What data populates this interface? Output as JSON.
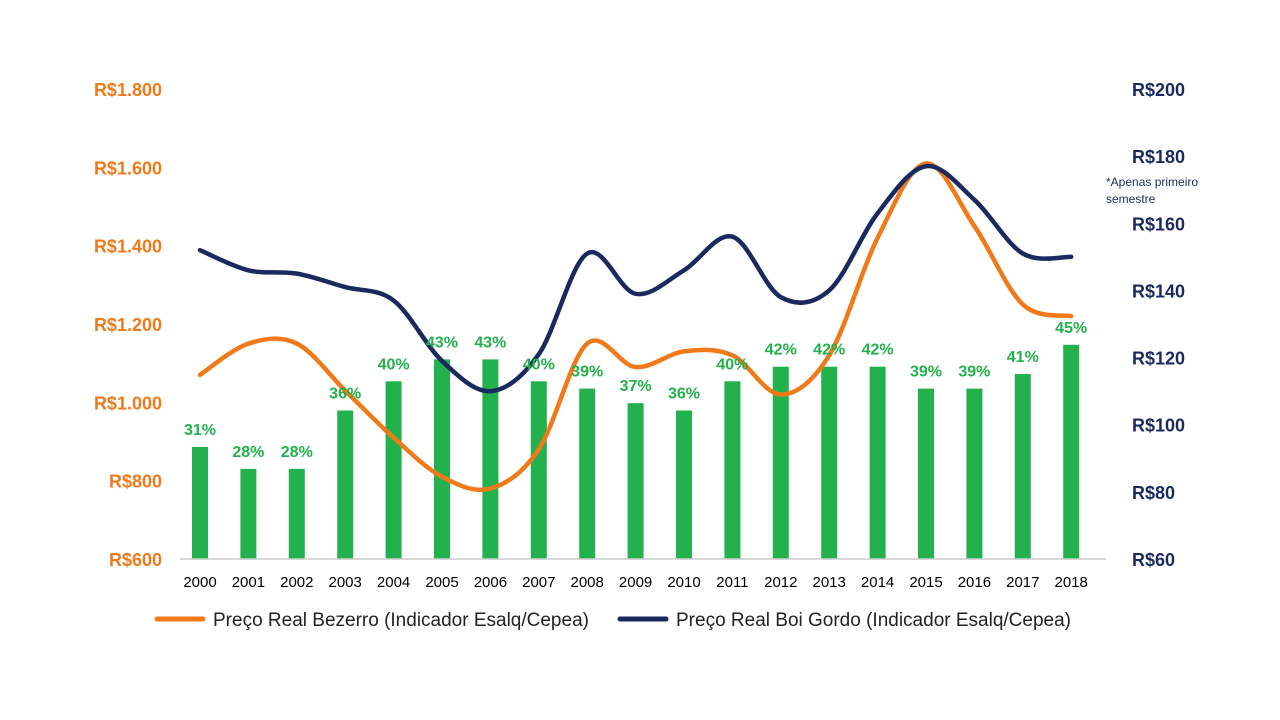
{
  "chart_data": {
    "type": "bar",
    "categories": [
      "2000",
      "2001",
      "2002",
      "2003",
      "2004",
      "2005",
      "2006",
      "2007",
      "2008",
      "2009",
      "2010",
      "2011",
      "2012",
      "2013",
      "2014",
      "2015",
      "2016",
      "2017",
      "2018"
    ],
    "bars": {
      "values": [
        31,
        28,
        28,
        36,
        40,
        43,
        43,
        40,
        39,
        37,
        36,
        40,
        42,
        42,
        42,
        39,
        39,
        41,
        45
      ],
      "labels": [
        "31%",
        "28%",
        "28%",
        "36%",
        "40%",
        "43%",
        "43%",
        "40%",
        "39%",
        "37%",
        "36%",
        "40%",
        "42%",
        "42%",
        "42%",
        "39%",
        "39%",
        "41%",
        "45%"
      ],
      "color": "#22b14c"
    },
    "series": [
      {
        "name": "Preço Real Bezerro (Indicador Esalq/Cepea)",
        "axis": "left",
        "color": "#f07a1a",
        "values": [
          1070,
          1150,
          1150,
          1030,
          910,
          810,
          780,
          880,
          1150,
          1090,
          1130,
          1120,
          1020,
          1120,
          1420,
          1610,
          1450,
          1250,
          1220
        ]
      },
      {
        "name": "Preço Real Boi Gordo (Indicador Esalq/Cepea)",
        "axis": "right",
        "color": "#1a2a5e",
        "values": [
          152,
          146,
          145,
          141,
          137,
          119,
          110,
          121,
          151,
          139,
          146,
          156,
          138,
          140,
          163,
          177,
          167,
          151,
          150
        ]
      }
    ],
    "y_left": {
      "ticks": [
        "R$600",
        "R$800",
        "R$1.000",
        "R$1.200",
        "R$1.400",
        "R$1.600",
        "R$1.800"
      ],
      "range": [
        600,
        1800
      ],
      "color": "#f07a1a"
    },
    "y_right": {
      "ticks": [
        "R$60",
        "R$80",
        "R$100",
        "R$120",
        "R$140",
        "R$160",
        "R$180",
        "R$200"
      ],
      "range": [
        60,
        200
      ],
      "color": "#1a2a5e"
    },
    "note": [
      "*Apenas primeiro",
      "semestre"
    ],
    "legend_position": "bottom",
    "grid": false
  }
}
